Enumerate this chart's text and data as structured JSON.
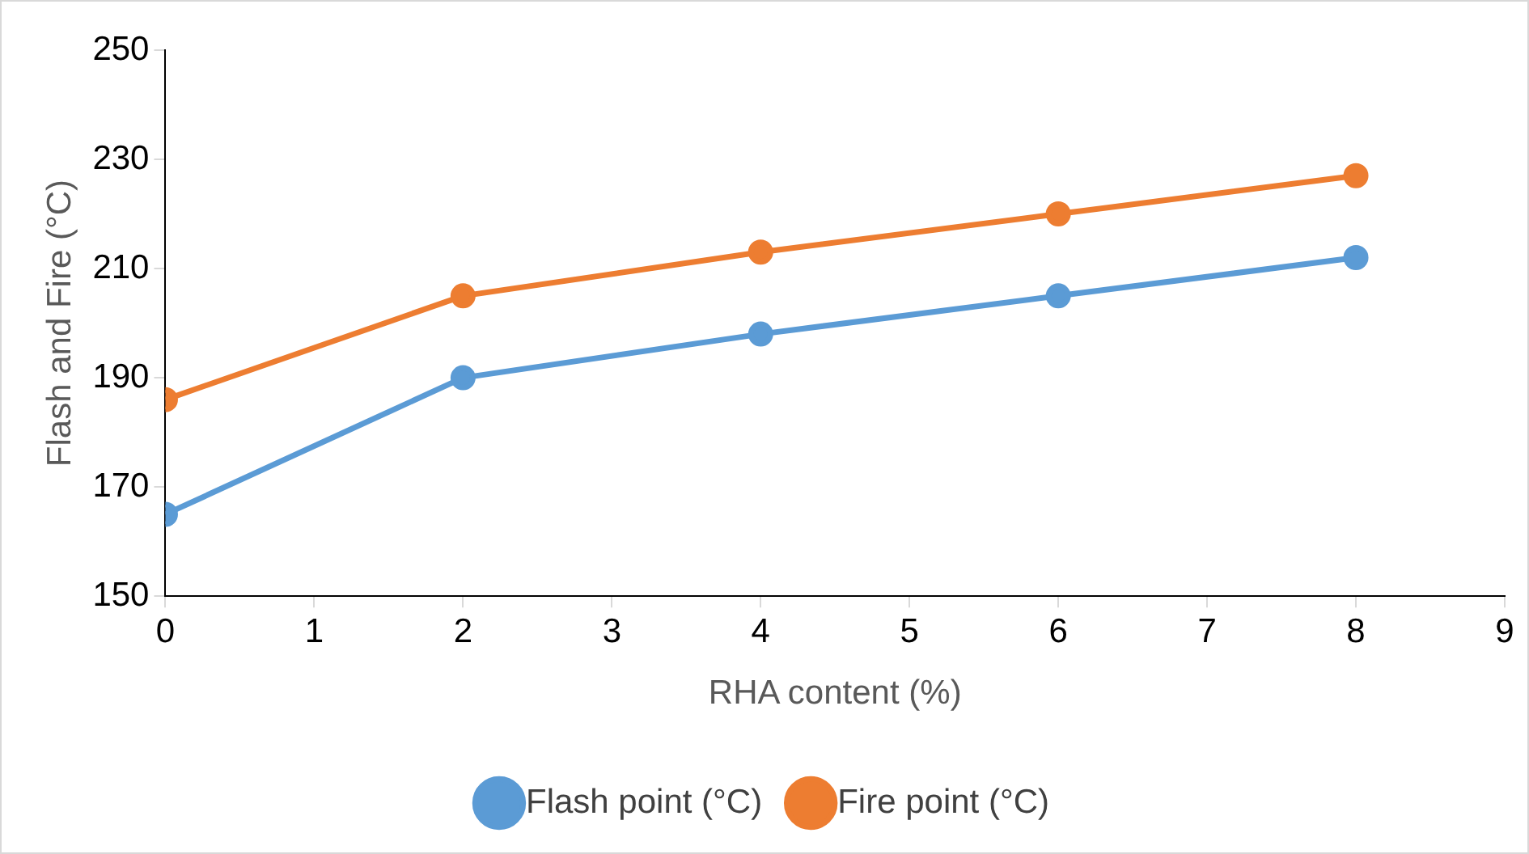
{
  "chart_data": {
    "type": "line",
    "xlabel": "RHA content (%)",
    "ylabel": "Flash and Fire (°C)",
    "x": [
      0,
      2,
      4,
      6,
      8
    ],
    "series": [
      {
        "name": "Flash point (°C)",
        "color": "#5b9bd5",
        "values": [
          165,
          190,
          198,
          205,
          212
        ]
      },
      {
        "name": "Fire point (°C)",
        "color": "#ed7d31",
        "values": [
          186,
          205,
          213,
          220,
          227
        ]
      }
    ],
    "xlim": [
      0,
      9
    ],
    "xticks": [
      0,
      1,
      2,
      3,
      4,
      5,
      6,
      7,
      8,
      9
    ],
    "ylim": [
      150,
      250
    ],
    "yticks": [
      150,
      170,
      190,
      210,
      230,
      250
    ],
    "grid": false,
    "legend": "bottom",
    "marker": "circle",
    "line_style": "solid"
  }
}
